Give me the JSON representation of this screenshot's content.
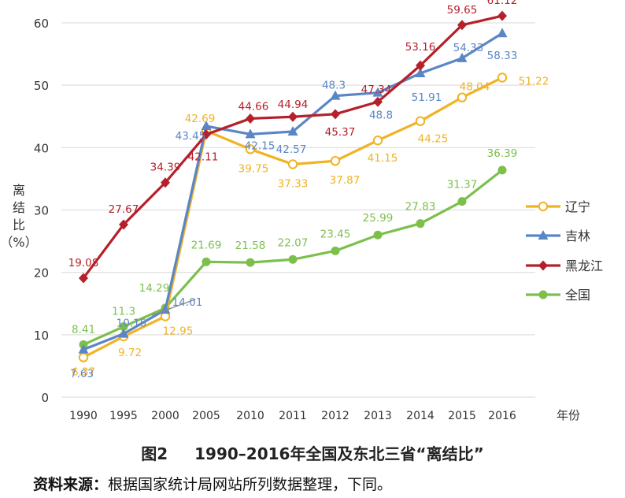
{
  "chart_data": {
    "type": "line",
    "title": "图2 1990–2016年全国及东北三省“离结比”",
    "ylabel": "离结比（%）",
    "xlabel": "年份",
    "categories": [
      "1990",
      "1995",
      "2000",
      "2005",
      "2010",
      "2011",
      "2012",
      "2013",
      "2014",
      "2015",
      "2016"
    ],
    "ylim": [
      0,
      60
    ],
    "yticks": [
      0,
      10,
      20,
      30,
      40,
      50,
      60
    ],
    "grid": true,
    "legend_position": "right",
    "series": [
      {
        "name": "辽宁",
        "color": "#F0B323",
        "marker": "open-circle",
        "values": [
          6.37,
          9.72,
          12.95,
          42.69,
          39.75,
          37.33,
          37.87,
          41.15,
          44.25,
          48.04,
          51.22
        ]
      },
      {
        "name": "吉林",
        "color": "#5B86C5",
        "marker": "triangle",
        "values": [
          7.63,
          10.15,
          14.01,
          43.45,
          42.15,
          42.57,
          48.3,
          48.8,
          51.91,
          54.33,
          58.33
        ]
      },
      {
        "name": "黑龙江",
        "color": "#B5202A",
        "marker": "diamond",
        "values": [
          19.08,
          27.67,
          34.39,
          42.11,
          44.66,
          44.94,
          45.37,
          47.34,
          53.16,
          59.65,
          61.12
        ]
      },
      {
        "name": "全国",
        "color": "#7CC04B",
        "marker": "circle",
        "values": [
          8.41,
          11.3,
          14.29,
          21.69,
          21.58,
          22.07,
          23.45,
          25.99,
          27.83,
          31.37,
          36.39
        ]
      }
    ]
  },
  "caption": {
    "figure_label": "图2",
    "title": "1990–2016年全国及东北三省“离结比”"
  },
  "source": {
    "label": "资料来源：",
    "text": "根据国家统计局网站所列数据整理，下同。"
  }
}
